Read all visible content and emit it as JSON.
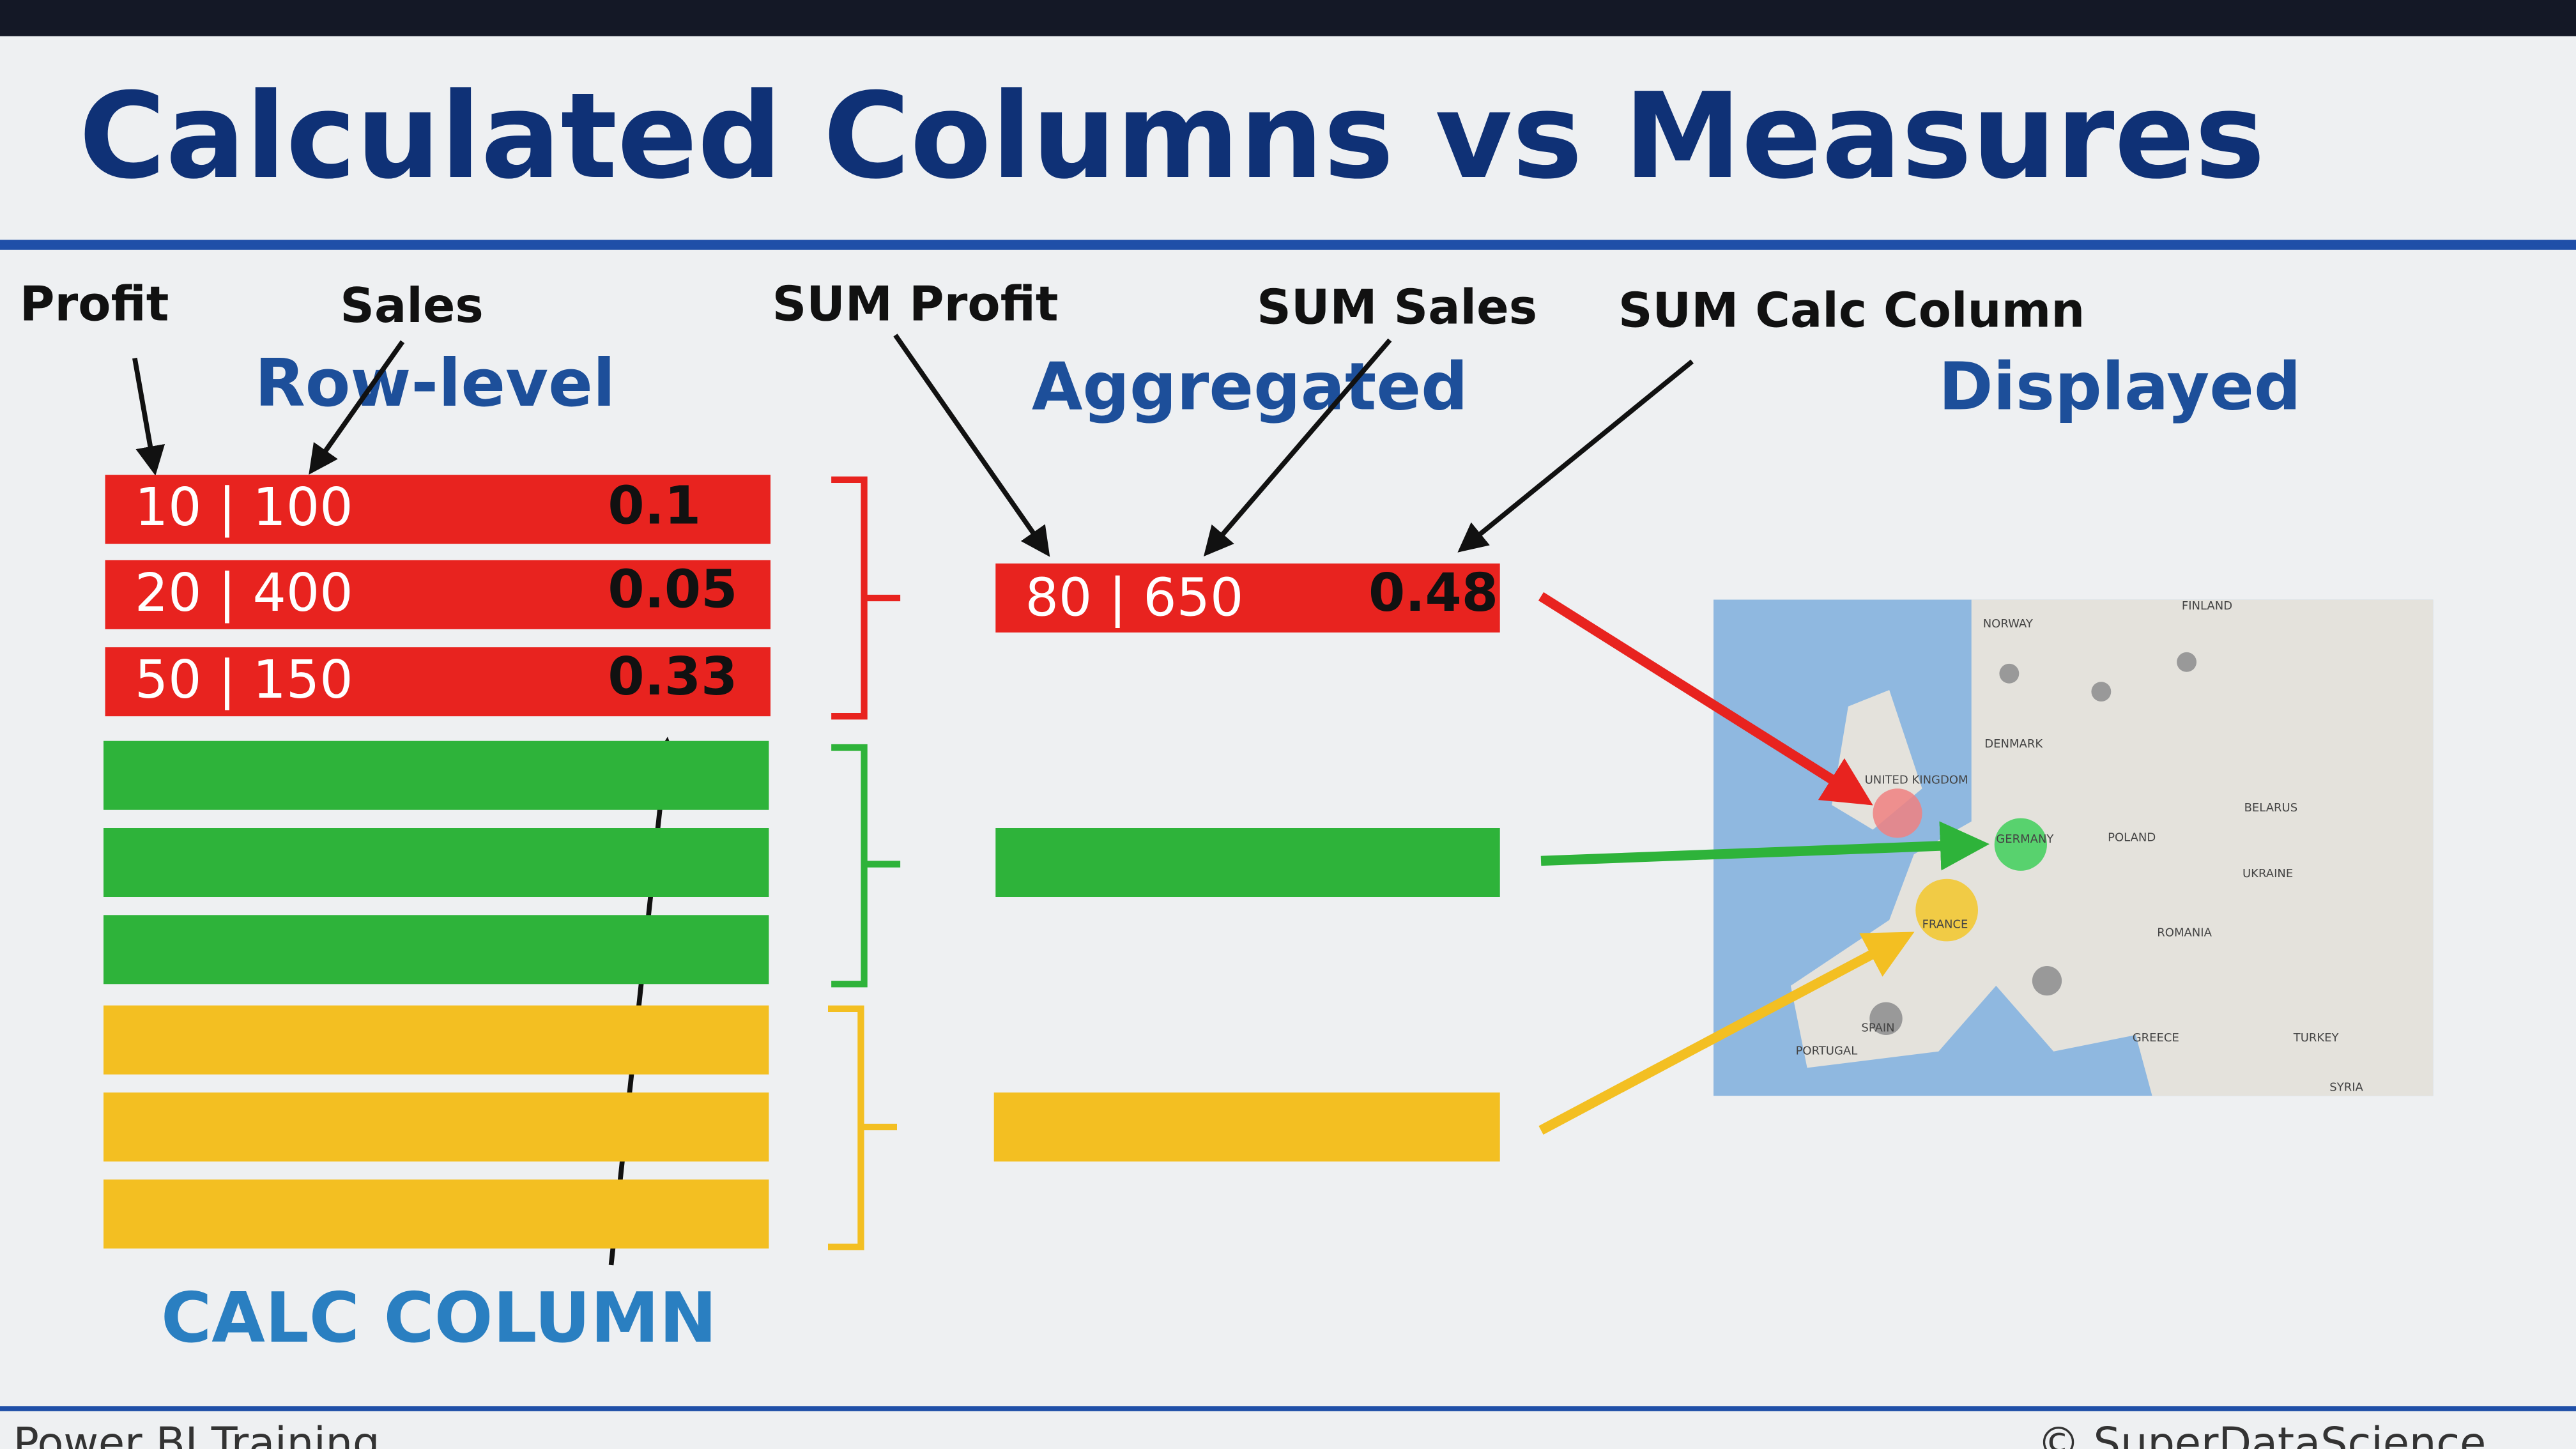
{
  "header": {
    "title": "Calculated Columns vs Measures"
  },
  "labels": {
    "profit": "Profit",
    "sales": "Sales",
    "row_level": "Row-level",
    "sum_profit": "SUM Profit",
    "sum_sales": "SUM Sales",
    "sum_calc": "SUM Calc Column",
    "aggregated": "Aggregated",
    "displayed": "Displayed",
    "calc_column": "CALC COLUMN"
  },
  "table": {
    "rows": [
      [
        "10 | 100",
        "0.1"
      ],
      [
        "20 | 400",
        "0.05"
      ],
      [
        "50 | 150",
        "0.33"
      ]
    ]
  },
  "measure": [
    "80 | 650",
    "0.48"
  ],
  "map": {
    "labels": [
      "NORWAY",
      "FINLAND",
      "DENMARK",
      "UNITED KINGDOM",
      "GERMANY",
      "FRANCE",
      "POLAND",
      "BELARUS",
      "UKRAINE",
      "ROMANIA",
      "SPAIN",
      "PORTUGAL",
      "GREECE",
      "TURKEY",
      "SYRIA"
    ]
  },
  "footer": {
    "left": "Power BI Training",
    "right": "© SuperDataScience"
  }
}
